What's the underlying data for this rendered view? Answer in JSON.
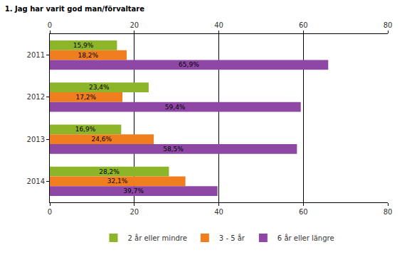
{
  "chart_data": {
    "type": "bar",
    "title": "1. Jag har varit god man/förvaltare",
    "orientation": "horizontal",
    "categories": [
      "2011",
      "2012",
      "2013",
      "2014"
    ],
    "series": [
      {
        "name": "2 år eller mindre",
        "color": "#8db52a",
        "values": [
          15.9,
          23.4,
          16.9,
          28.2
        ],
        "value_labels": [
          "15,9%",
          "23,4%",
          "16,9%",
          "28,2%"
        ]
      },
      {
        "name": "3 - 5 år",
        "color": "#f07e1e",
        "values": [
          18.2,
          17.2,
          24.6,
          32.1
        ],
        "value_labels": [
          "18,2%",
          "17,2%",
          "24,6%",
          "32,1%"
        ]
      },
      {
        "name": "6 år eller längre",
        "color": "#8f47a6",
        "values": [
          65.9,
          59.4,
          58.5,
          39.7
        ],
        "value_labels": [
          "65,9%",
          "59,4%",
          "58,5%",
          "39,7%"
        ]
      }
    ],
    "xlim": [
      0,
      80
    ],
    "xticks": [
      0,
      20,
      40,
      60,
      80
    ],
    "grid": true,
    "data_labels": true,
    "legend": "bottom"
  }
}
